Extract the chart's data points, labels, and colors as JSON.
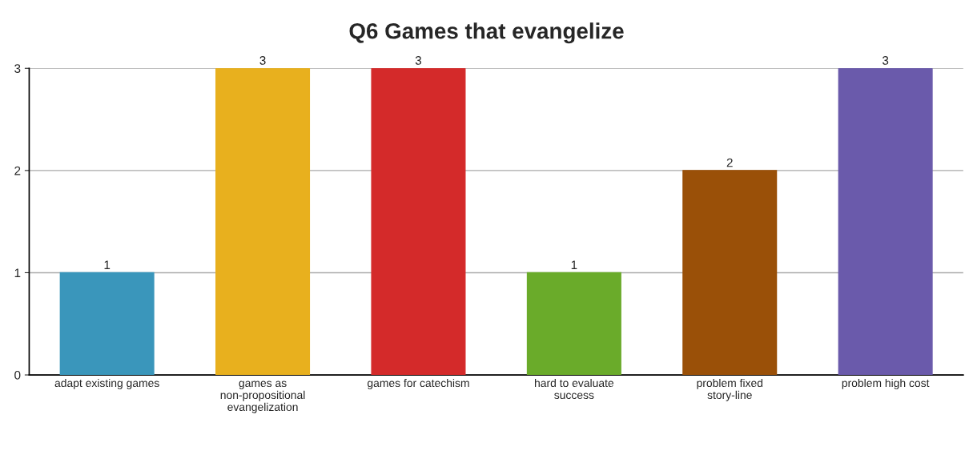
{
  "chart_data": {
    "type": "bar",
    "title": "Q6 Games that evangelize",
    "categories": [
      "adapt existing games",
      "games as non-propositional evangelization",
      "games for catechism",
      "hard to evaluate success",
      "problem fixed story-line",
      "problem high cost"
    ],
    "values": [
      1,
      3,
      3,
      1,
      2,
      3
    ],
    "colors": [
      "#3a96bb",
      "#e8b01e",
      "#d42a2a",
      "#6aab2a",
      "#9a5008",
      "#6a5aab"
    ],
    "ylim": [
      0,
      3
    ],
    "yticks": [
      0,
      1,
      2,
      3
    ],
    "grid": "y",
    "data_labels": true
  }
}
